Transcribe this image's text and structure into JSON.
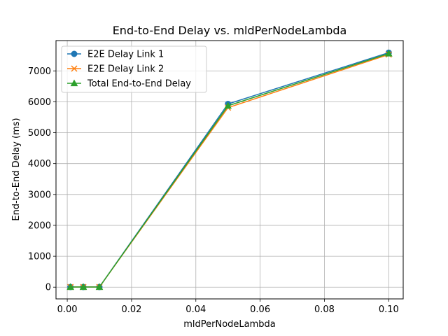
{
  "chart_data": {
    "type": "line",
    "title": "End-to-End Delay vs. mldPerNodeLambda",
    "xlabel": "mldPerNodeLambda",
    "ylabel": "End-to-End Delay (ms)",
    "x": [
      0.001,
      0.005,
      0.01,
      0.05,
      0.1
    ],
    "xlim": [
      -0.0035,
      0.1045
    ],
    "ylim": [
      -380,
      7980
    ],
    "xticks": [
      0.0,
      0.02,
      0.04,
      0.06,
      0.08,
      0.1
    ],
    "xtick_labels": [
      "0.00",
      "0.02",
      "0.04",
      "0.06",
      "0.08",
      "0.10"
    ],
    "yticks": [
      0,
      1000,
      2000,
      3000,
      4000,
      5000,
      6000,
      7000
    ],
    "ytick_labels": [
      "0",
      "1000",
      "2000",
      "3000",
      "4000",
      "5000",
      "6000",
      "7000"
    ],
    "grid": true,
    "legend_position": "top-left",
    "series": [
      {
        "name": "E2E Delay Link 1",
        "values": [
          5,
          5,
          5,
          5930,
          7590
        ],
        "color": "#1f77b4",
        "marker": "circle"
      },
      {
        "name": "E2E Delay Link 2",
        "values": [
          5,
          5,
          5,
          5810,
          7530
        ],
        "color": "#ff7f0e",
        "marker": "x"
      },
      {
        "name": "Total End-to-End Delay",
        "values": [
          5,
          5,
          5,
          5870,
          7560
        ],
        "color": "#2ca02c",
        "marker": "triangle"
      }
    ]
  }
}
